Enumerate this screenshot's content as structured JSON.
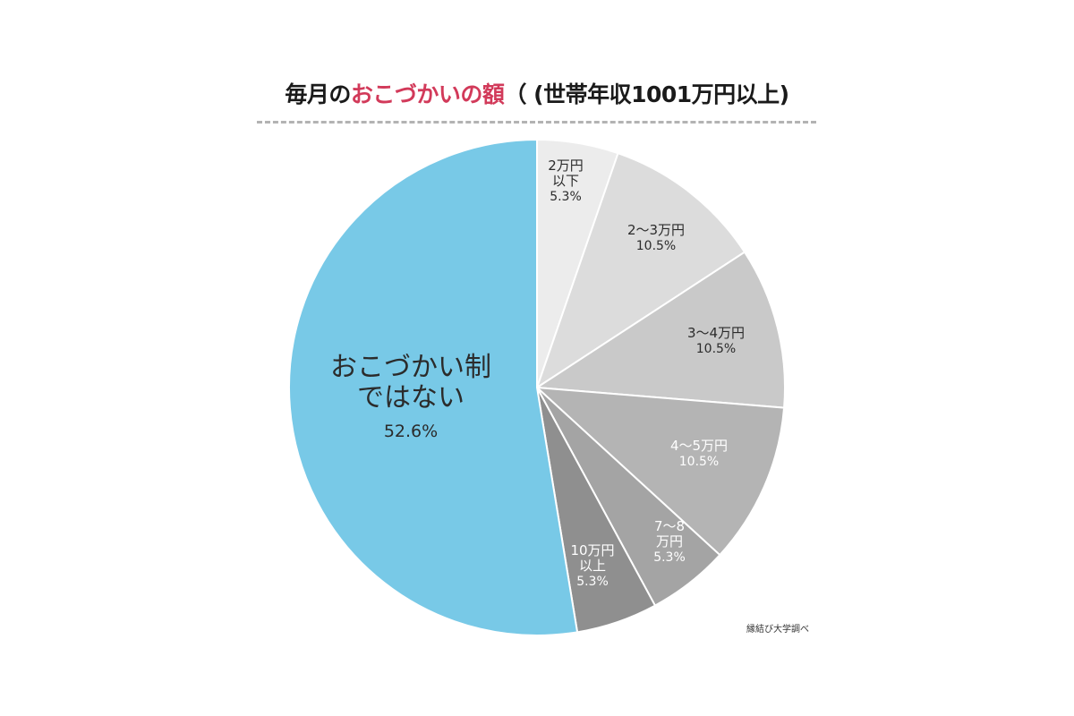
{
  "title": {
    "prefix": "毎月の",
    "highlight": "おこづかいの額",
    "suffix": "（ (世帯年収1001万円以上)"
  },
  "source": "縁結び大学調べ",
  "chart_data": {
    "type": "pie",
    "start_angle_deg": 0,
    "direction": "clockwise",
    "slices": [
      {
        "label_lines": [
          "2万円",
          "以下"
        ],
        "percent_label": "5.3%",
        "value": 5.3,
        "color": "#ececec",
        "text_color": "#2b2b2b"
      },
      {
        "label_lines": [
          "2〜3万円"
        ],
        "percent_label": "10.5%",
        "value": 10.5,
        "color": "#dcdcdc",
        "text_color": "#2b2b2b"
      },
      {
        "label_lines": [
          "3〜4万円"
        ],
        "percent_label": "10.5%",
        "value": 10.5,
        "color": "#c9c9c9",
        "text_color": "#2b2b2b"
      },
      {
        "label_lines": [
          "4〜5万円"
        ],
        "percent_label": "10.5%",
        "value": 10.5,
        "color": "#b4b4b4",
        "text_color": "#ffffff"
      },
      {
        "label_lines": [
          "7〜8",
          "万円"
        ],
        "percent_label": "5.3%",
        "value": 5.3,
        "color": "#a4a4a4",
        "text_color": "#ffffff"
      },
      {
        "label_lines": [
          "10万円",
          "以上"
        ],
        "percent_label": "5.3%",
        "value": 5.3,
        "color": "#8f8f8f",
        "text_color": "#ffffff"
      },
      {
        "label_lines": [
          "おこづかい制",
          "ではない"
        ],
        "percent_label": "52.6%",
        "value": 52.6,
        "color": "#78c9e7",
        "text_color": "#2b2b2b"
      }
    ]
  }
}
